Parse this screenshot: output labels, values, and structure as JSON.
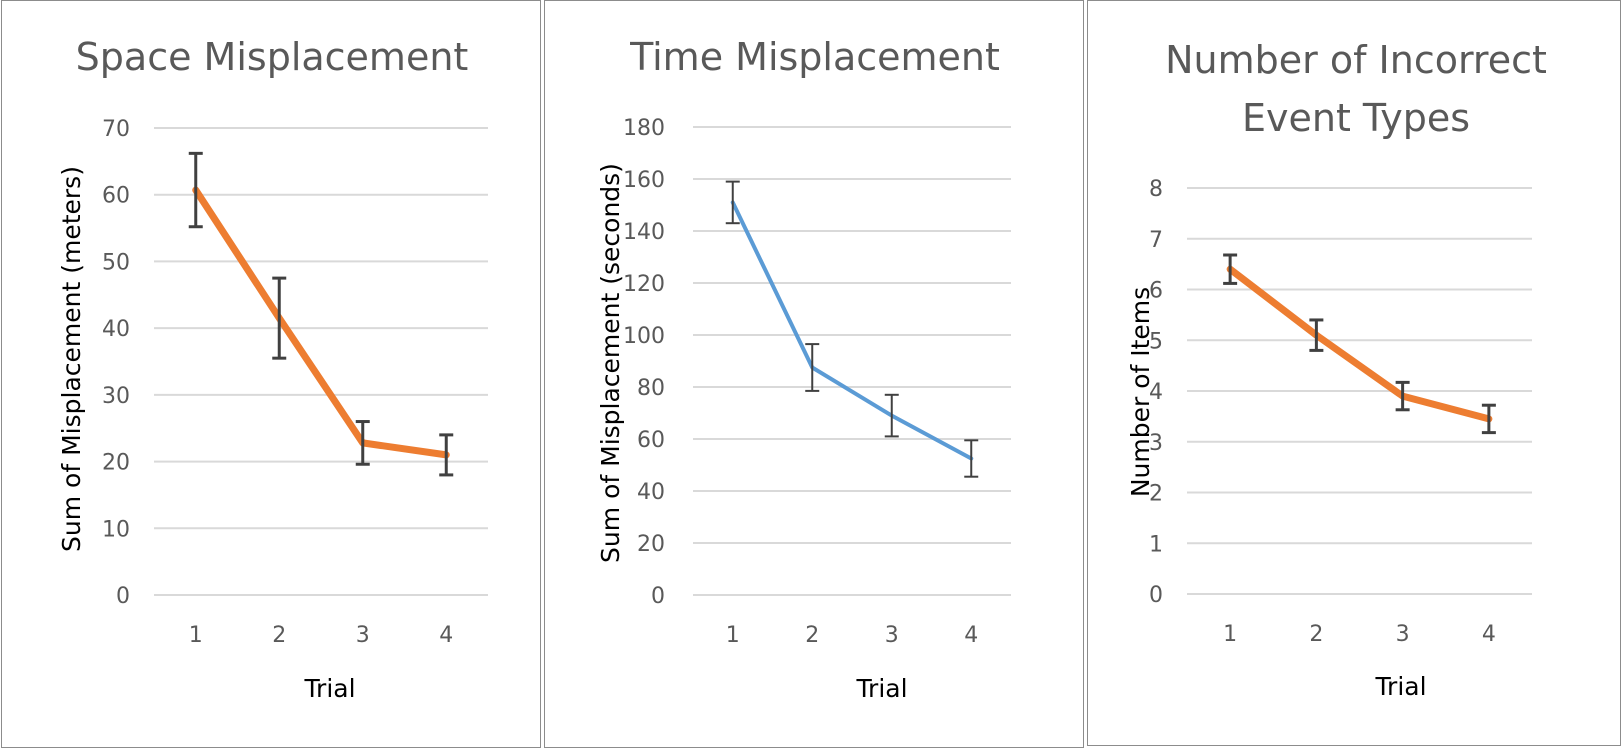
{
  "charts": [
    {
      "id": "space",
      "chart_data": {
        "type": "line",
        "title": [
          "Space Misplacement"
        ],
        "xlabel": "Trial",
        "ylabel": "Sum of Misplacement (meters)",
        "categories": [
          "1",
          "2",
          "3",
          "4"
        ],
        "y_ticks": [
          0,
          10,
          20,
          30,
          40,
          50,
          60,
          70
        ],
        "ylim": [
          0,
          70
        ],
        "series": [
          {
            "values": [
              60.7,
              41.5,
              22.8,
              21.0
            ],
            "error": [
              5.5,
              6.0,
              3.2,
              3.0
            ],
            "color": "#ed7d31"
          }
        ],
        "grid": true
      }
    },
    {
      "id": "time",
      "chart_data": {
        "type": "line",
        "title": [
          "Time Misplacement"
        ],
        "xlabel": "Trial",
        "ylabel": "Sum of Misplacement (seconds)",
        "categories": [
          "1",
          "2",
          "3",
          "4"
        ],
        "y_ticks": [
          0,
          20,
          40,
          60,
          80,
          100,
          120,
          140,
          160,
          180
        ],
        "ylim": [
          0,
          180
        ],
        "series": [
          {
            "values": [
              151,
              87.5,
              69,
              52.5
            ],
            "error": [
              8,
              9,
              8,
              7
            ],
            "color": "#5b9bd5"
          }
        ],
        "grid": true
      }
    },
    {
      "id": "items",
      "chart_data": {
        "type": "line",
        "title": [
          "Number of Incorrect",
          "Event Types"
        ],
        "xlabel": "Trial",
        "ylabel": "Number of Items",
        "categories": [
          "1",
          "2",
          "3",
          "4"
        ],
        "y_ticks": [
          0,
          1,
          2,
          3,
          4,
          5,
          6,
          7,
          8
        ],
        "ylim": [
          0,
          8
        ],
        "series": [
          {
            "values": [
              6.4,
              5.1,
              3.9,
              3.45
            ],
            "error": [
              0.28,
              0.3,
              0.27,
              0.27
            ],
            "color": "#ed7d31"
          }
        ],
        "grid": true
      }
    }
  ],
  "colors": {
    "tick_text": "#595959",
    "grid": "#d9d9d9",
    "error_bar": "#404040"
  }
}
